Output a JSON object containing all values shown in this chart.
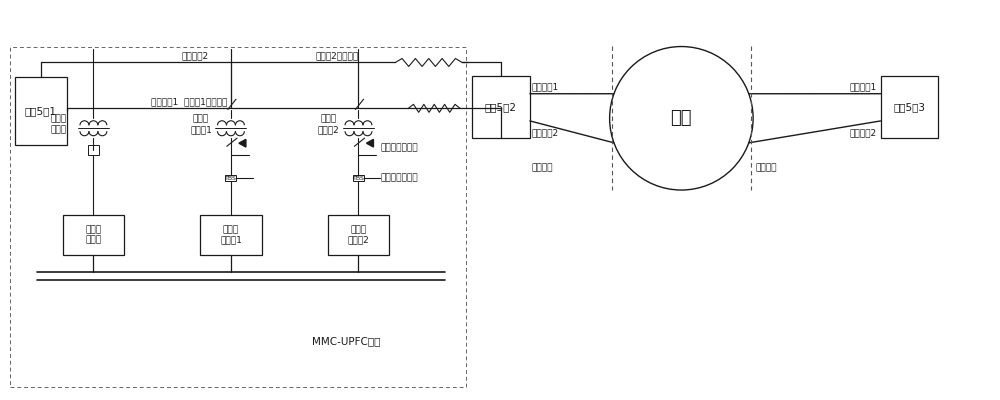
{
  "bg_color": "#ffffff",
  "line_color": "#1a1a1a",
  "dashed_color": "#555555",
  "fs": 6.5,
  "fm": 7.5,
  "labels": {
    "substation1": "变电5站1",
    "substation2": "变电5站2",
    "substation3": "变电5站3",
    "load": "负荷",
    "shunt_transformer": "并联侧\n变压器",
    "series_transformer1": "串联侧\n变压器1",
    "series_transformer2": "串联侧\n变压器2",
    "shunt_converter": "并联侧\n换流器",
    "series_converter1": "串联侧\n换流器1",
    "series_converter2": "串联侧\n换流器2",
    "controlled_line2": "受控线路2",
    "controlled_line1": "受控线路1  串联侧1旁路开关",
    "series_bypass2": "串联侧2旁路开关",
    "transmission_line1": "传输线路1",
    "transmission_line2": "传输线路2",
    "near_section": "近端断面",
    "far_section": "远端断面",
    "low_voltage_bypass": "低压侧旁路开关",
    "thyristor_bypass": "晶闸管旁路开关",
    "mmc_upfc": "MMC-UPFC系统"
  }
}
